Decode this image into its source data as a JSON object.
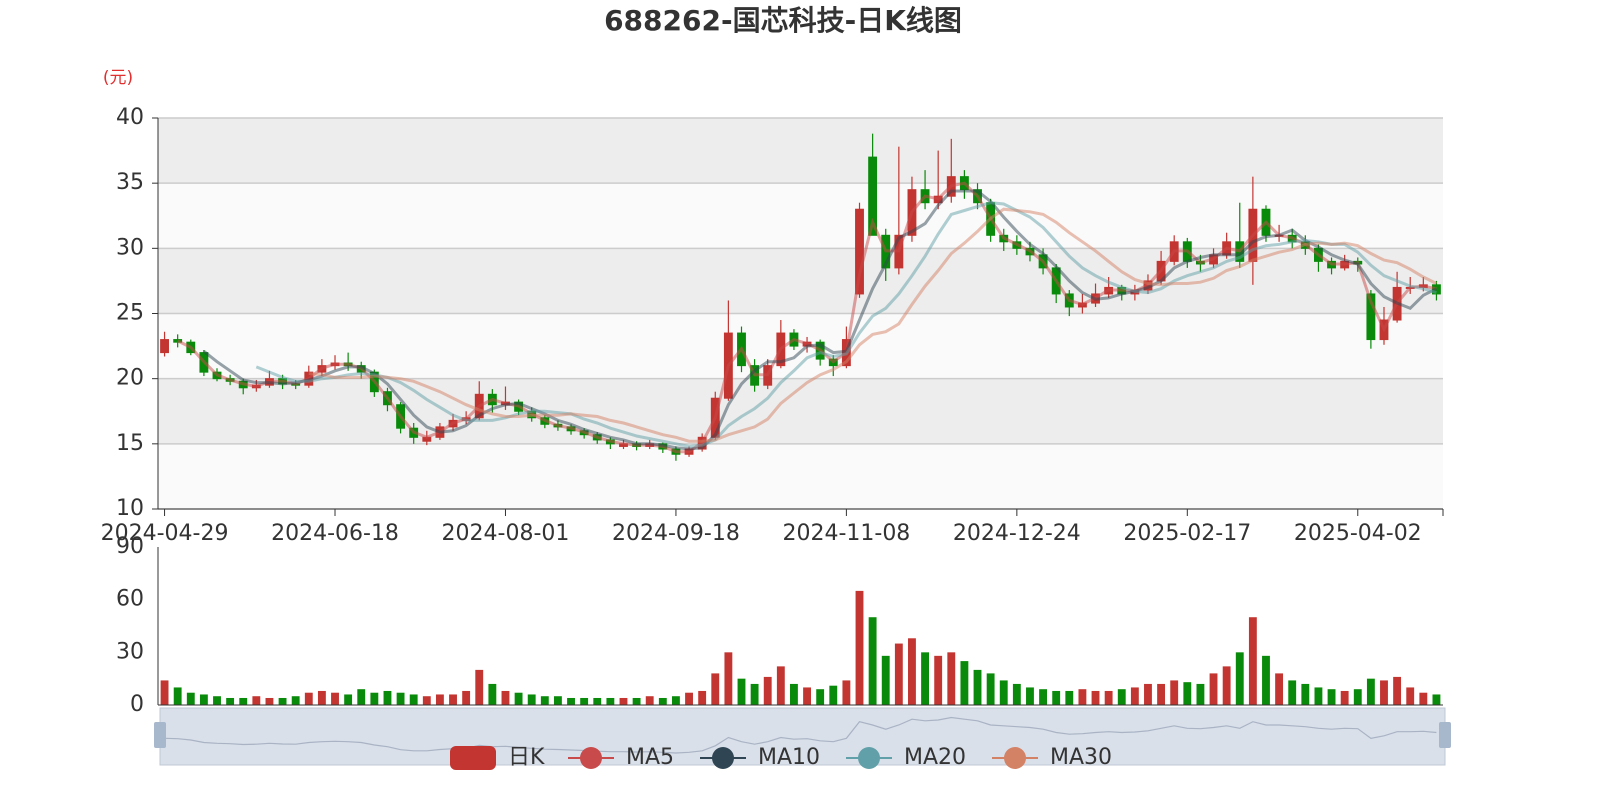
{
  "chart_data": {
    "type": "candlestick",
    "title": "688262-国芯科技-日K线图",
    "unit_label": "(元)",
    "candle_name": "日K",
    "up_color": "#c23531",
    "down_color": "#0a8a0a",
    "grid": true,
    "ylim": [
      10,
      40
    ],
    "yticks": [
      10,
      15,
      20,
      25,
      30,
      35,
      40
    ],
    "categories": [
      "2024-04-29",
      null,
      null,
      null,
      null,
      null,
      null,
      null,
      null,
      null,
      null,
      null,
      null,
      "2024-06-18",
      null,
      null,
      null,
      null,
      null,
      null,
      null,
      null,
      null,
      null,
      null,
      null,
      "2024-08-01",
      null,
      null,
      null,
      null,
      null,
      null,
      null,
      null,
      null,
      null,
      null,
      null,
      "2024-09-18",
      null,
      null,
      null,
      null,
      null,
      null,
      null,
      null,
      null,
      null,
      null,
      null,
      "2024-11-08",
      null,
      null,
      null,
      null,
      null,
      null,
      null,
      null,
      null,
      null,
      null,
      null,
      "2024-12-24",
      null,
      null,
      null,
      null,
      null,
      null,
      null,
      null,
      null,
      null,
      null,
      null,
      "2025-02-17",
      null,
      null,
      null,
      null,
      null,
      null,
      null,
      null,
      null,
      null,
      null,
      null,
      "2025-04-02",
      null,
      null,
      null,
      null,
      null,
      null
    ],
    "ohlc": [
      [
        22.0,
        23.6,
        21.7,
        23.0
      ],
      [
        23.0,
        23.4,
        22.4,
        22.8
      ],
      [
        22.8,
        23.0,
        21.8,
        22.0
      ],
      [
        22.0,
        22.2,
        20.2,
        20.5
      ],
      [
        20.5,
        20.8,
        19.8,
        20.0
      ],
      [
        20.0,
        20.3,
        19.5,
        19.8
      ],
      [
        19.8,
        20.0,
        18.8,
        19.3
      ],
      [
        19.3,
        19.9,
        19.0,
        19.5
      ],
      [
        19.5,
        20.6,
        19.3,
        20.0
      ],
      [
        20.0,
        20.3,
        19.2,
        19.6
      ],
      [
        19.6,
        19.9,
        19.2,
        19.5
      ],
      [
        19.5,
        21.0,
        19.3,
        20.5
      ],
      [
        20.5,
        21.5,
        20.2,
        21.0
      ],
      [
        21.0,
        21.8,
        20.7,
        21.2
      ],
      [
        21.2,
        22.0,
        20.6,
        21.0
      ],
      [
        21.0,
        21.3,
        20.0,
        20.5
      ],
      [
        20.5,
        20.7,
        18.6,
        19.0
      ],
      [
        19.0,
        19.3,
        17.5,
        18.0
      ],
      [
        18.0,
        18.2,
        15.8,
        16.2
      ],
      [
        16.2,
        16.6,
        15.0,
        15.5
      ],
      [
        15.2,
        16.0,
        14.9,
        15.5
      ],
      [
        15.5,
        16.6,
        15.3,
        16.3
      ],
      [
        16.3,
        17.3,
        16.0,
        16.8
      ],
      [
        16.8,
        17.5,
        16.5,
        17.0
      ],
      [
        17.0,
        19.8,
        16.8,
        18.8
      ],
      [
        18.8,
        19.2,
        17.4,
        18.0
      ],
      [
        18.0,
        19.4,
        17.6,
        18.2
      ],
      [
        18.2,
        18.4,
        17.2,
        17.5
      ],
      [
        17.5,
        17.8,
        16.7,
        17.0
      ],
      [
        17.0,
        17.2,
        16.2,
        16.5
      ],
      [
        16.5,
        16.8,
        16.0,
        16.3
      ],
      [
        16.3,
        16.5,
        15.7,
        16.0
      ],
      [
        16.0,
        16.2,
        15.4,
        15.7
      ],
      [
        15.7,
        15.9,
        15.0,
        15.3
      ],
      [
        15.3,
        15.5,
        14.6,
        15.0
      ],
      [
        14.8,
        15.3,
        14.6,
        15.0
      ],
      [
        15.0,
        15.2,
        14.5,
        14.8
      ],
      [
        14.8,
        15.3,
        14.6,
        15.0
      ],
      [
        15.0,
        15.1,
        14.3,
        14.6
      ],
      [
        14.6,
        14.8,
        13.7,
        14.2
      ],
      [
        14.2,
        14.8,
        14.0,
        14.6
      ],
      [
        14.6,
        15.8,
        14.4,
        15.5
      ],
      [
        15.5,
        19.0,
        15.3,
        18.5
      ],
      [
        18.5,
        26.0,
        18.3,
        23.5
      ],
      [
        23.5,
        24.0,
        20.5,
        21.0
      ],
      [
        21.0,
        21.5,
        19.0,
        19.5
      ],
      [
        19.5,
        21.5,
        19.2,
        21.0
      ],
      [
        21.0,
        24.5,
        20.8,
        23.5
      ],
      [
        23.5,
        23.8,
        22.2,
        22.5
      ],
      [
        22.5,
        23.2,
        22.0,
        22.8
      ],
      [
        22.8,
        23.0,
        21.0,
        21.5
      ],
      [
        21.5,
        21.8,
        20.2,
        21.0
      ],
      [
        21.0,
        24.0,
        20.8,
        23.0
      ],
      [
        26.5,
        33.5,
        26.2,
        33.0
      ],
      [
        37.0,
        38.8,
        31.0,
        31.0
      ],
      [
        31.0,
        31.5,
        27.5,
        28.5
      ],
      [
        28.5,
        37.8,
        28.0,
        31.0
      ],
      [
        31.0,
        35.5,
        30.5,
        34.5
      ],
      [
        34.5,
        36.0,
        33.0,
        33.5
      ],
      [
        33.5,
        37.5,
        33.0,
        34.0
      ],
      [
        34.0,
        38.4,
        33.5,
        35.5
      ],
      [
        35.5,
        36.0,
        33.8,
        34.5
      ],
      [
        34.5,
        35.0,
        33.0,
        33.5
      ],
      [
        33.5,
        33.8,
        30.5,
        31.0
      ],
      [
        31.0,
        31.5,
        29.8,
        30.5
      ],
      [
        30.5,
        31.0,
        29.5,
        30.0
      ],
      [
        30.0,
        30.5,
        29.0,
        29.5
      ],
      [
        29.5,
        30.0,
        28.0,
        28.5
      ],
      [
        28.5,
        28.8,
        25.8,
        26.5
      ],
      [
        26.5,
        26.8,
        24.8,
        25.5
      ],
      [
        25.5,
        26.5,
        25.0,
        25.8
      ],
      [
        25.8,
        27.3,
        25.5,
        26.5
      ],
      [
        26.5,
        27.8,
        26.2,
        27.0
      ],
      [
        27.0,
        27.2,
        26.0,
        26.5
      ],
      [
        26.5,
        27.2,
        26.0,
        26.8
      ],
      [
        26.8,
        28.0,
        26.5,
        27.5
      ],
      [
        27.5,
        29.8,
        27.2,
        29.0
      ],
      [
        29.0,
        31.0,
        28.7,
        30.5
      ],
      [
        30.5,
        30.8,
        28.5,
        29.0
      ],
      [
        29.0,
        29.5,
        28.2,
        28.8
      ],
      [
        28.8,
        30.0,
        28.5,
        29.5
      ],
      [
        29.5,
        31.2,
        29.2,
        30.5
      ],
      [
        30.5,
        33.5,
        28.5,
        29.0
      ],
      [
        29.0,
        35.5,
        27.2,
        33.0
      ],
      [
        33.0,
        33.3,
        30.5,
        31.0
      ],
      [
        31.0,
        31.8,
        30.5,
        31.0
      ],
      [
        31.0,
        31.5,
        30.0,
        30.5
      ],
      [
        30.5,
        31.0,
        29.5,
        30.0
      ],
      [
        30.0,
        30.3,
        28.2,
        29.0
      ],
      [
        29.0,
        29.3,
        28.0,
        28.5
      ],
      [
        28.5,
        29.5,
        28.3,
        29.0
      ],
      [
        29.0,
        29.3,
        28.2,
        28.8
      ],
      [
        26.5,
        26.8,
        22.3,
        23.0
      ],
      [
        23.0,
        25.5,
        22.6,
        24.5
      ],
      [
        24.5,
        28.2,
        24.3,
        27.0
      ],
      [
        27.0,
        27.8,
        26.5,
        27.0
      ],
      [
        27.0,
        27.8,
        26.7,
        27.2
      ],
      [
        27.2,
        27.5,
        26.0,
        26.5
      ]
    ],
    "series": [
      {
        "name": "MA5",
        "color": "#c94a4a",
        "values": [
          null,
          22.9,
          22.4,
          21.3,
          20.3,
          19.9,
          19.6,
          19.4,
          19.8,
          19.8,
          19.6,
          20.0,
          20.8,
          21.1,
          21.1,
          20.8,
          19.8,
          18.5,
          17.1,
          15.9,
          15.5,
          15.9,
          16.6,
          16.9,
          17.9,
          18.4,
          18.1,
          17.9,
          17.3,
          16.8,
          16.4,
          16.2,
          15.9,
          15.5,
          15.2,
          15.0,
          14.9,
          14.9,
          14.8,
          14.4,
          14.4,
          15.1,
          17.0,
          21.0,
          22.3,
          20.3,
          20.3,
          22.3,
          23.0,
          22.7,
          22.2,
          21.3,
          22.0,
          28.0,
          32.0,
          29.8,
          29.8,
          32.8,
          34.0,
          33.8,
          34.8,
          35.0,
          34.0,
          32.3,
          30.8,
          30.3,
          29.8,
          29.0,
          27.5,
          26.0,
          25.7,
          26.2,
          26.8,
          26.8,
          26.7,
          27.2,
          28.3,
          29.8,
          29.8,
          28.9,
          29.2,
          30.0,
          29.8,
          31.0,
          32.0,
          31.0,
          30.8,
          30.3,
          29.5,
          28.8,
          28.8,
          28.9,
          25.9,
          23.8,
          25.8,
          27.0,
          27.1,
          26.9
        ]
      },
      {
        "name": "MA10",
        "color": "#2f4554",
        "values": [
          null,
          null,
          null,
          22.1,
          21.3,
          20.6,
          19.9,
          19.7,
          19.7,
          19.6,
          19.7,
          19.9,
          20.2,
          20.6,
          20.9,
          20.9,
          20.4,
          19.6,
          18.4,
          17.2,
          16.3,
          15.9,
          16.0,
          16.4,
          17.2,
          17.7,
          18.0,
          18.1,
          17.7,
          17.3,
          16.8,
          16.5,
          16.1,
          15.8,
          15.5,
          15.3,
          15.0,
          15.0,
          14.9,
          14.7,
          14.6,
          14.7,
          15.7,
          18.0,
          19.6,
          20.6,
          21.3,
          21.3,
          21.6,
          22.5,
          22.6,
          22.0,
          22.1,
          24.5,
          26.9,
          28.8,
          30.8,
          31.3,
          31.9,
          33.3,
          34.4,
          34.4,
          34.4,
          33.6,
          32.4,
          31.3,
          30.3,
          29.6,
          28.6,
          27.5,
          26.6,
          26.1,
          26.2,
          26.5,
          26.7,
          27.0,
          27.5,
          28.5,
          29.0,
          29.3,
          29.5,
          29.5,
          29.5,
          30.5,
          30.9,
          31.0,
          31.4,
          30.6,
          30.1,
          29.5,
          29.1,
          28.8,
          27.3,
          26.3,
          25.8,
          25.4,
          26.4,
          26.9
        ]
      },
      {
        "name": "MA20",
        "color": "#61a0a8",
        "values": [
          null,
          null,
          null,
          null,
          null,
          null,
          null,
          20.9,
          20.5,
          20.1,
          19.8,
          19.8,
          20.0,
          20.1,
          20.3,
          20.4,
          20.3,
          20.1,
          19.7,
          19.1,
          18.4,
          17.8,
          17.2,
          16.8,
          16.8,
          16.8,
          17.0,
          17.3,
          17.5,
          17.5,
          17.4,
          17.3,
          16.9,
          16.6,
          16.2,
          15.9,
          15.6,
          15.4,
          15.2,
          15.0,
          14.8,
          14.9,
          15.3,
          16.4,
          17.1,
          17.7,
          18.5,
          19.7,
          20.6,
          21.6,
          22.0,
          21.7,
          21.9,
          23.5,
          24.8,
          25.4,
          26.5,
          27.9,
          29.4,
          31.1,
          32.6,
          32.9,
          33.2,
          33.5,
          33.4,
          32.9,
          32.4,
          31.6,
          30.5,
          29.4,
          28.5,
          27.9,
          27.4,
          27.0,
          26.7,
          26.6,
          26.9,
          27.5,
          27.9,
          28.2,
          28.5,
          29.0,
          29.3,
          29.9,
          30.2,
          30.3,
          30.5,
          30.6,
          30.5,
          30.3,
          30.3,
          29.7,
          28.7,
          27.9,
          27.5,
          27.1,
          26.9,
          26.6
        ]
      },
      {
        "name": "MA30",
        "color": "#d48265",
        "values": [
          null,
          null,
          null,
          null,
          null,
          null,
          null,
          null,
          null,
          null,
          null,
          20.4,
          20.3,
          20.1,
          20.1,
          20.1,
          20.2,
          20.1,
          20.0,
          19.8,
          19.4,
          19.0,
          18.5,
          18.0,
          17.6,
          17.3,
          17.1,
          17.1,
          17.2,
          17.2,
          17.2,
          17.3,
          17.2,
          17.1,
          16.8,
          16.6,
          16.3,
          16.0,
          15.7,
          15.5,
          15.2,
          15.2,
          15.3,
          15.7,
          16.0,
          16.3,
          16.9,
          18.1,
          18.9,
          19.7,
          20.3,
          20.7,
          21.3,
          22.6,
          23.4,
          23.6,
          24.2,
          25.7,
          27.1,
          28.3,
          29.6,
          30.4,
          31.3,
          32.3,
          33.0,
          32.9,
          32.8,
          32.6,
          32.0,
          31.2,
          30.5,
          29.8,
          29.0,
          28.2,
          27.6,
          27.3,
          27.2,
          27.3,
          27.3,
          27.4,
          27.7,
          28.3,
          28.6,
          29.1,
          29.4,
          29.7,
          29.9,
          30.3,
          30.4,
          30.3,
          30.4,
          30.2,
          29.6,
          29.1,
          28.9,
          28.4,
          27.8,
          27.3
        ]
      }
    ],
    "volume": {
      "ylim": [
        0,
        90
      ],
      "yticks": [
        0,
        30,
        60,
        90
      ],
      "values": [
        14,
        10,
        7,
        6,
        5,
        4,
        4,
        5,
        4,
        4,
        5,
        7,
        8,
        7,
        6,
        9,
        7,
        8,
        7,
        6,
        5,
        6,
        6,
        8,
        20,
        12,
        8,
        7,
        6,
        5,
        5,
        4,
        4,
        4,
        4,
        4,
        4,
        5,
        4,
        5,
        7,
        8,
        18,
        30,
        15,
        12,
        16,
        22,
        12,
        10,
        9,
        11,
        14,
        65,
        50,
        28,
        35,
        38,
        30,
        28,
        30,
        25,
        20,
        18,
        14,
        12,
        10,
        9,
        8,
        8,
        9,
        8,
        8,
        9,
        10,
        12,
        12,
        14,
        13,
        12,
        18,
        22,
        30,
        50,
        28,
        18,
        14,
        12,
        10,
        9,
        8,
        9,
        15,
        14,
        16,
        10,
        7,
        6
      ]
    }
  }
}
